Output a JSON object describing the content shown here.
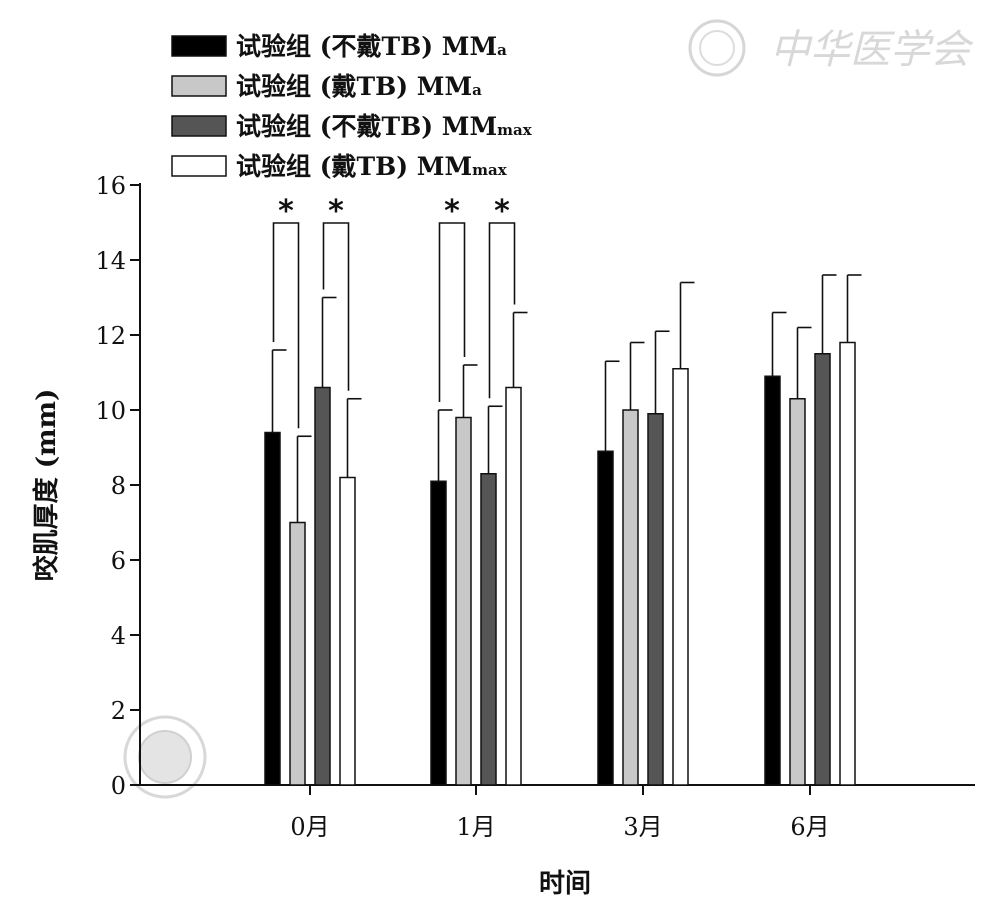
{
  "chart_data": {
    "type": "bar",
    "categories": [
      "0月",
      "1月",
      "3月",
      "6月"
    ],
    "xlabel": "时间",
    "ylabel": "咬肌厚度 (mm)",
    "ylim": [
      0,
      16
    ],
    "yticks": [
      0,
      2,
      4,
      6,
      8,
      10,
      12,
      14,
      16
    ],
    "grid": false,
    "legend_position": "top-left",
    "series": [
      {
        "name": "试验组 (不戴TB) MM",
        "name_sub": "a",
        "color": "#000000",
        "values": [
          9.4,
          8.1,
          8.9,
          10.9
        ],
        "errors": [
          2.2,
          1.9,
          2.4,
          1.7
        ]
      },
      {
        "name": "试验组 (戴TB) MM",
        "name_sub": "a",
        "color": "#c8c8c8",
        "values": [
          7.0,
          9.8,
          10.0,
          10.3
        ],
        "errors": [
          2.3,
          1.4,
          1.8,
          1.9
        ]
      },
      {
        "name": "试验组 (不戴TB) MM",
        "name_sub": "max",
        "color": "#555555",
        "values": [
          10.6,
          8.3,
          9.9,
          11.5
        ],
        "errors": [
          2.4,
          1.8,
          2.2,
          2.1
        ]
      },
      {
        "name": "试验组 (戴TB) MM",
        "name_sub": "max",
        "color": "#ffffff",
        "values": [
          8.2,
          10.6,
          11.1,
          11.8
        ],
        "errors": [
          2.1,
          2.0,
          2.3,
          1.8
        ]
      }
    ],
    "significance": [
      {
        "category": 0,
        "between": [
          0,
          1
        ],
        "label": "*"
      },
      {
        "category": 0,
        "between": [
          2,
          3
        ],
        "label": "*"
      },
      {
        "category": 1,
        "between": [
          0,
          1
        ],
        "label": "*"
      },
      {
        "category": 1,
        "between": [
          2,
          3
        ],
        "label": "*"
      }
    ]
  },
  "watermark": {
    "text": "中华医学会"
  }
}
